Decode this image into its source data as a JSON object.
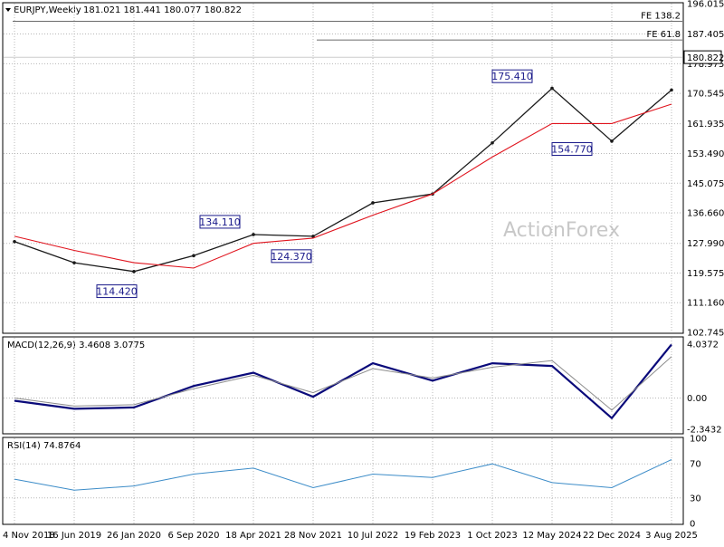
{
  "header": {
    "symbol": "EURJPY,Weekly",
    "ohlc": "181.021 181.441 180.077 180.822"
  },
  "watermark": "ActionForex",
  "price_panel": {
    "y_ticks": [
      "196.015",
      "187.405",
      "178.975",
      "170.545",
      "161.935",
      "153.490",
      "145.075",
      "136.660",
      "127.990",
      "119.575",
      "111.160",
      "102.745"
    ],
    "last_price": "180.822",
    "ylim": [
      102.745,
      196.015
    ]
  },
  "macd_panel": {
    "title": "MACD(12,26,9) 3.4608 3.0775",
    "y_ticks": [
      "4.0372",
      "0.00",
      "-2.3432"
    ],
    "ylim": [
      -2.6,
      4.5
    ]
  },
  "rsi_panel": {
    "title": "RSI(14) 74.8764",
    "y_ticks": [
      "100",
      "70",
      "30",
      "0"
    ],
    "ylim": [
      0,
      100
    ]
  },
  "x_axis": {
    "labels": [
      "4 Nov 2018",
      "16 Jun 2019",
      "26 Jan 2020",
      "6 Sep 2020",
      "18 Apr 2021",
      "28 Nov 2021",
      "10 Jul 2022",
      "19 Feb 2023",
      "1 Oct 2023",
      "12 May 2024",
      "22 Dec 2024",
      "3 Aug 2025"
    ]
  },
  "colors": {
    "bars": "#1a1a1a",
    "sma": "#e0141e",
    "macd": "#0a0a7a",
    "signal": "#8c8c8c",
    "rsi": "#3c8cc8",
    "labels": "#1a1a8a"
  },
  "chart_data": [
    {
      "type": "line",
      "title": "EURJPY,Weekly",
      "x": [
        "4 Nov 2018",
        "16 Jun 2019",
        "26 Jan 2020",
        "6 Sep 2020",
        "18 Apr 2021",
        "28 Nov 2021",
        "10 Jul 2022",
        "19 Feb 2023",
        "1 Oct 2023",
        "12 May 2024",
        "22 Dec 2024",
        "3 Aug 2025"
      ],
      "series": [
        {
          "values": [
            128.5,
            122.5,
            120.0,
            124.5,
            130.5,
            130.0,
            139.5,
            142.0,
            156.5,
            172.0,
            157.0,
            171.5
          ]
        },
        {
          "values": [
            130.0,
            126.0,
            122.5,
            121.0,
            128.0,
            129.5,
            136.0,
            142.0,
            152.5,
            162.0,
            162.0,
            167.5
          ]
        }
      ],
      "annotations": [
        {
          "text": "175.410"
        },
        {
          "text": "154.770"
        },
        {
          "text": "134.110"
        },
        {
          "text": "124.370"
        },
        {
          "text": "114.420"
        },
        {
          "text": "FE 138.2"
        },
        {
          "text": "FE 61.8"
        }
      ],
      "levels": [
        {
          "label": "FE 138.2",
          "value": 191.0
        },
        {
          "label": "FE 61.8",
          "value": 185.7
        }
      ],
      "ylim": [
        102.745,
        196.015
      ],
      "grid": true
    },
    {
      "type": "line",
      "title": "MACD(12,26,9) 3.4608 3.0775",
      "x": [
        "4 Nov 2018",
        "16 Jun 2019",
        "26 Jan 2020",
        "6 Sep 2020",
        "18 Apr 2021",
        "28 Nov 2021",
        "10 Jul 2022",
        "19 Feb 2023",
        "1 Oct 2023",
        "12 May 2024",
        "22 Dec 2024",
        "3 Aug 2025"
      ],
      "series": [
        {
          "values": [
            -0.2,
            -0.8,
            -0.7,
            0.9,
            1.9,
            0.1,
            2.6,
            1.3,
            2.6,
            2.4,
            -1.5,
            4.0
          ]
        },
        {
          "values": [
            0.0,
            -0.6,
            -0.5,
            0.7,
            1.7,
            0.4,
            2.2,
            1.5,
            2.3,
            2.8,
            -0.9,
            3.1
          ]
        }
      ],
      "ylim": [
        -2.6,
        4.5
      ]
    },
    {
      "type": "line",
      "title": "RSI(14) 74.8764",
      "x": [
        "4 Nov 2018",
        "16 Jun 2019",
        "26 Jan 2020",
        "6 Sep 2020",
        "18 Apr 2021",
        "28 Nov 2021",
        "10 Jul 2022",
        "19 Feb 2023",
        "1 Oct 2023",
        "12 May 2024",
        "22 Dec 2024",
        "3 Aug 2025"
      ],
      "series": [
        {
          "values": [
            52,
            39,
            44,
            58,
            65,
            42,
            58,
            54,
            70,
            48,
            42,
            75
          ]
        }
      ],
      "levels": [
        70,
        30
      ],
      "ylim": [
        0,
        100
      ]
    }
  ]
}
